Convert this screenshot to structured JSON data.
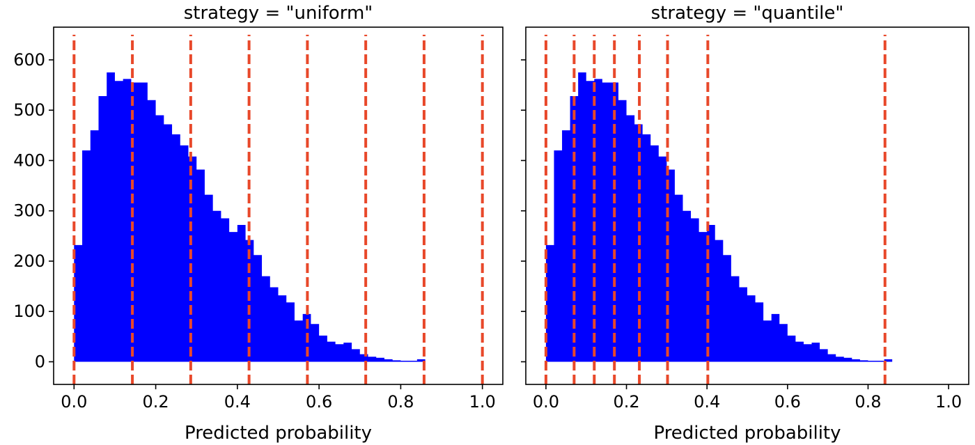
{
  "chart_data": [
    {
      "type": "area",
      "title": "strategy = \"uniform\"",
      "xlabel": "Predicted probability",
      "ylabel": "",
      "xlim": [
        -0.05,
        1.05
      ],
      "ylim": [
        -45,
        665
      ],
      "xticks": [
        0.0,
        0.2,
        0.4,
        0.6,
        0.8,
        1.0
      ],
      "xtick_labels": [
        "0.0",
        "0.2",
        "0.4",
        "0.6",
        "0.8",
        "1.0"
      ],
      "yticks": [
        0,
        100,
        200,
        300,
        400,
        500,
        600
      ],
      "ytick_labels": [
        "0",
        "100",
        "200",
        "300",
        "400",
        "500",
        "600"
      ],
      "show_ytick_labels": true,
      "grid": false,
      "fill_color": "#0000ff",
      "line_color": "#e8482a",
      "histogram": {
        "bin_start": 0.0,
        "bin_width": 0.02,
        "counts": [
          232,
          420,
          460,
          528,
          575,
          558,
          562,
          555,
          555,
          520,
          490,
          472,
          452,
          430,
          408,
          382,
          332,
          300,
          285,
          258,
          272,
          242,
          212,
          170,
          148,
          132,
          118,
          82,
          95,
          75,
          52,
          40,
          35,
          38,
          25,
          15,
          10,
          8,
          5,
          3,
          2,
          2,
          5
        ]
      },
      "vlines": {
        "x": [
          0.0,
          0.142857,
          0.285714,
          0.428571,
          0.571429,
          0.714286,
          0.857143,
          1.0
        ],
        "ymin": -45,
        "ymax": 650,
        "style": "dashed"
      }
    },
    {
      "type": "area",
      "title": "strategy = \"quantile\"",
      "xlabel": "Predicted probability",
      "ylabel": "",
      "xlim": [
        -0.05,
        1.05
      ],
      "ylim": [
        -45,
        665
      ],
      "xticks": [
        0.0,
        0.2,
        0.4,
        0.6,
        0.8,
        1.0
      ],
      "xtick_labels": [
        "0.0",
        "0.2",
        "0.4",
        "0.6",
        "0.8",
        "1.0"
      ],
      "yticks": [
        0,
        100,
        200,
        300,
        400,
        500,
        600
      ],
      "ytick_labels": [
        "",
        "",
        "",
        "",
        "",
        "",
        ""
      ],
      "show_ytick_labels": false,
      "grid": false,
      "fill_color": "#0000ff",
      "line_color": "#e8482a",
      "histogram": {
        "bin_start": 0.0,
        "bin_width": 0.02,
        "counts": [
          232,
          420,
          460,
          528,
          575,
          558,
          562,
          555,
          555,
          520,
          490,
          472,
          452,
          430,
          408,
          382,
          332,
          300,
          285,
          258,
          272,
          242,
          212,
          170,
          148,
          132,
          118,
          82,
          95,
          75,
          52,
          40,
          35,
          38,
          25,
          15,
          10,
          8,
          5,
          3,
          2,
          2,
          5
        ]
      },
      "vlines": {
        "x": [
          0.0,
          0.07,
          0.12,
          0.17,
          0.232,
          0.302,
          0.402,
          0.842
        ],
        "ymin": -45,
        "ymax": 650,
        "style": "dashed"
      }
    }
  ]
}
